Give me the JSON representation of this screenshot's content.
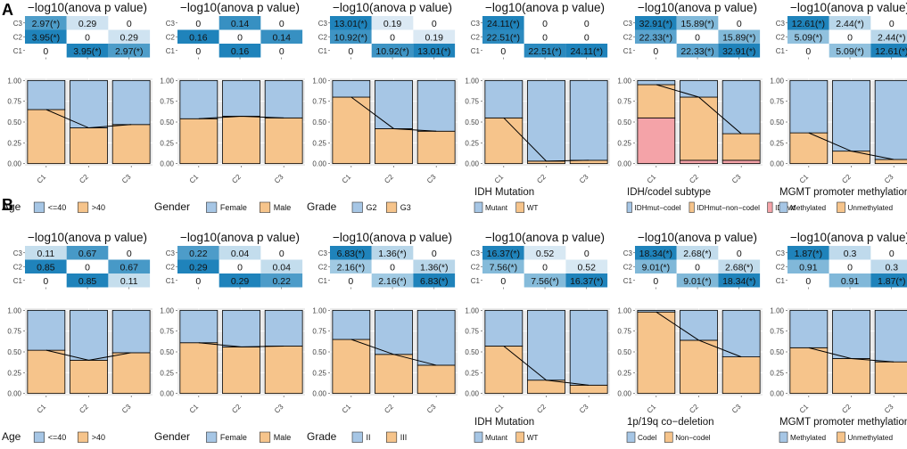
{
  "figure": {
    "panel_labels": [
      "A",
      "B"
    ],
    "heatmap_title": "−log10(anova p value)",
    "clusters": [
      "C1",
      "C2",
      "C3"
    ],
    "bar_y_ticks": [
      "0.00",
      "0.25",
      "0.50",
      "0.75",
      "1.00"
    ]
  },
  "colors": {
    "bar_blue": "#a6c6e5",
    "bar_orange": "#f6c48b",
    "bar_red": "#f4a3a8",
    "heat_low": "#eef4fa",
    "heat_high": "#1f83bb",
    "panel_bg": "#ebebeb",
    "grid": "#ffffff",
    "line": "#000000"
  },
  "chart_data": [
    {
      "id": "A1",
      "row": 0,
      "type": "heatmap+stacked-bar",
      "title": "−log10(anova p value)",
      "heatmap": {
        "rows": [
          "C1",
          "C2",
          "C3"
        ],
        "cols": [
          "C1",
          "C2",
          "C3"
        ],
        "cells": [
          [
            "0",
            "3.95(*)",
            "2.97(*)"
          ],
          [
            "3.95(*)",
            "0",
            "0.29"
          ],
          [
            "2.97(*)",
            "0.29",
            "0"
          ]
        ],
        "values": [
          [
            0,
            3.95,
            2.97
          ],
          [
            3.95,
            0,
            0.29
          ],
          [
            2.97,
            0.29,
            0
          ]
        ]
      },
      "stack": {
        "series": [
          {
            "name": ">40",
            "color": "orange",
            "values": [
              0.65,
              0.43,
              0.47
            ]
          },
          {
            "name": "<=40",
            "color": "blue",
            "values": [
              0.35,
              0.57,
              0.53
            ]
          }
        ],
        "line": [
          0.65,
          0.43,
          0.47
        ]
      },
      "legend": {
        "title": "Age",
        "entries": [
          {
            "label": "<=40",
            "color": "blue"
          },
          {
            "label": ">40",
            "color": "orange"
          }
        ]
      }
    },
    {
      "id": "A2",
      "row": 0,
      "type": "heatmap+stacked-bar",
      "title": "−log10(anova p value)",
      "heatmap": {
        "rows": [
          "C1",
          "C2",
          "C3"
        ],
        "cols": [
          "C1",
          "C2",
          "C3"
        ],
        "cells": [
          [
            "0",
            "0.16",
            "0"
          ],
          [
            "0.16",
            "0",
            "0.14"
          ],
          [
            "0",
            "0.14",
            "0"
          ]
        ],
        "values": [
          [
            0,
            0.16,
            0
          ],
          [
            0.16,
            0,
            0.14
          ],
          [
            0,
            0.14,
            0
          ]
        ]
      },
      "stack": {
        "series": [
          {
            "name": "Male",
            "color": "orange",
            "values": [
              0.54,
              0.57,
              0.55
            ]
          },
          {
            "name": "Female",
            "color": "blue",
            "values": [
              0.46,
              0.43,
              0.45
            ]
          }
        ],
        "line": [
          0.54,
          0.57,
          0.55
        ]
      },
      "legend": {
        "title": "Gender",
        "entries": [
          {
            "label": "Female",
            "color": "blue"
          },
          {
            "label": "Male",
            "color": "orange"
          }
        ]
      }
    },
    {
      "id": "A3",
      "row": 0,
      "type": "heatmap+stacked-bar",
      "title": "−log10(anova p value)",
      "heatmap": {
        "rows": [
          "C1",
          "C2",
          "C3"
        ],
        "cols": [
          "C1",
          "C2",
          "C3"
        ],
        "cells": [
          [
            "0",
            "10.92(*)",
            "13.01(*)"
          ],
          [
            "10.92(*)",
            "0",
            "0.19"
          ],
          [
            "13.01(*)",
            "0.19",
            "0"
          ]
        ],
        "values": [
          [
            0,
            10.92,
            13.01
          ],
          [
            10.92,
            0,
            0.19
          ],
          [
            13.01,
            0.19,
            0
          ]
        ]
      },
      "stack": {
        "series": [
          {
            "name": "G3",
            "color": "orange",
            "values": [
              0.8,
              0.42,
              0.39
            ]
          },
          {
            "name": "G2",
            "color": "blue",
            "values": [
              0.2,
              0.58,
              0.61
            ]
          }
        ],
        "line": [
          0.8,
          0.42,
          0.39
        ]
      },
      "legend": {
        "title": "Grade",
        "entries": [
          {
            "label": "G2",
            "color": "blue"
          },
          {
            "label": "G3",
            "color": "orange"
          }
        ]
      }
    },
    {
      "id": "A4",
      "row": 0,
      "type": "heatmap+stacked-bar",
      "title": "−log10(anova p value)",
      "heatmap": {
        "rows": [
          "C1",
          "C2",
          "C3"
        ],
        "cols": [
          "C1",
          "C2",
          "C3"
        ],
        "cells": [
          [
            "0",
            "22.51(*)",
            "24.11(*)"
          ],
          [
            "22.51(*)",
            "0",
            "0"
          ],
          [
            "24.11(*)",
            "0",
            "0"
          ]
        ],
        "values": [
          [
            0,
            22.51,
            24.11
          ],
          [
            22.51,
            0,
            0
          ],
          [
            24.11,
            0,
            0
          ]
        ]
      },
      "stack": {
        "series": [
          {
            "name": "WT",
            "color": "orange",
            "values": [
              0.55,
              0.03,
              0.04
            ]
          },
          {
            "name": "Mutant",
            "color": "blue",
            "values": [
              0.45,
              0.97,
              0.96
            ]
          }
        ],
        "line": [
          0.55,
          0.03,
          0.04
        ]
      },
      "legend": {
        "title": "IDH Mutation",
        "entries": [
          {
            "label": "Mutant",
            "color": "blue"
          },
          {
            "label": "WT",
            "color": "orange"
          }
        ]
      }
    },
    {
      "id": "A5",
      "row": 0,
      "type": "heatmap+stacked-bar",
      "title": "−log10(anova p value)",
      "heatmap": {
        "rows": [
          "C1",
          "C2",
          "C3"
        ],
        "cols": [
          "C1",
          "C2",
          "C3"
        ],
        "cells": [
          [
            "0",
            "22.33(*)",
            "32.91(*)"
          ],
          [
            "22.33(*)",
            "0",
            "15.89(*)"
          ],
          [
            "32.91(*)",
            "15.89(*)",
            "0"
          ]
        ],
        "values": [
          [
            0,
            22.33,
            32.91
          ],
          [
            22.33,
            0,
            15.89
          ],
          [
            32.91,
            15.89,
            0
          ]
        ]
      },
      "stack": {
        "series": [
          {
            "name": "IDHwt",
            "color": "red",
            "values": [
              0.55,
              0.04,
              0.04
            ]
          },
          {
            "name": "IDHmut−non−codel",
            "color": "orange",
            "values": [
              0.4,
              0.76,
              0.32
            ]
          },
          {
            "name": "IDHmut−codel",
            "color": "blue",
            "values": [
              0.05,
              0.2,
              0.64
            ]
          }
        ],
        "line": [
          0.95,
          0.8,
          0.36
        ]
      },
      "legend": {
        "title": "IDH/codel subtype",
        "entries": [
          {
            "label": "IDHmut−codel",
            "color": "blue"
          },
          {
            "label": "IDHmut−non−codel",
            "color": "orange"
          },
          {
            "label": "IDHwt",
            "color": "red"
          }
        ]
      }
    },
    {
      "id": "A6",
      "row": 0,
      "type": "heatmap+stacked-bar",
      "title": "−log10(anova p value)",
      "heatmap": {
        "rows": [
          "C1",
          "C2",
          "C3"
        ],
        "cols": [
          "C1",
          "C2",
          "C3"
        ],
        "cells": [
          [
            "0",
            "5.09(*)",
            "12.61(*)"
          ],
          [
            "5.09(*)",
            "0",
            "2.44(*)"
          ],
          [
            "12.61(*)",
            "2.44(*)",
            "0"
          ]
        ],
        "values": [
          [
            0,
            5.09,
            12.61
          ],
          [
            5.09,
            0,
            2.44
          ],
          [
            12.61,
            2.44,
            0
          ]
        ]
      },
      "stack": {
        "series": [
          {
            "name": "Unmethylated",
            "color": "orange",
            "values": [
              0.37,
              0.15,
              0.05
            ]
          },
          {
            "name": "Methylated",
            "color": "blue",
            "values": [
              0.63,
              0.85,
              0.95
            ]
          }
        ],
        "line": [
          0.37,
          0.15,
          0.05
        ]
      },
      "legend": {
        "title": "MGMT promoter methylation",
        "entries": [
          {
            "label": "Methylated",
            "color": "blue"
          },
          {
            "label": "Unmethylated",
            "color": "orange"
          }
        ]
      }
    },
    {
      "id": "B1",
      "row": 1,
      "type": "heatmap+stacked-bar",
      "title": "−log10(anova p value)",
      "heatmap": {
        "rows": [
          "C1",
          "C2",
          "C3"
        ],
        "cols": [
          "C1",
          "C2",
          "C3"
        ],
        "cells": [
          [
            "0",
            "0.85",
            "0.11"
          ],
          [
            "0.85",
            "0",
            "0.67"
          ],
          [
            "0.11",
            "0.67",
            "0"
          ]
        ],
        "values": [
          [
            0,
            0.85,
            0.11
          ],
          [
            0.85,
            0,
            0.67
          ],
          [
            0.11,
            0.67,
            0
          ]
        ]
      },
      "stack": {
        "series": [
          {
            "name": ">40",
            "color": "orange",
            "values": [
              0.52,
              0.4,
              0.49
            ]
          },
          {
            "name": "<=40",
            "color": "blue",
            "values": [
              0.48,
              0.6,
              0.51
            ]
          }
        ],
        "line": [
          0.52,
          0.4,
          0.49
        ]
      },
      "legend": {
        "title": "Age",
        "entries": [
          {
            "label": "<=40",
            "color": "blue"
          },
          {
            "label": ">40",
            "color": "orange"
          }
        ]
      }
    },
    {
      "id": "B2",
      "row": 1,
      "type": "heatmap+stacked-bar",
      "title": "−log10(anova p value)",
      "heatmap": {
        "rows": [
          "C1",
          "C2",
          "C3"
        ],
        "cols": [
          "C1",
          "C2",
          "C3"
        ],
        "cells": [
          [
            "0",
            "0.29",
            "0.22"
          ],
          [
            "0.29",
            "0",
            "0.04"
          ],
          [
            "0.22",
            "0.04",
            "0"
          ]
        ],
        "values": [
          [
            0,
            0.29,
            0.22
          ],
          [
            0.29,
            0,
            0.04
          ],
          [
            0.22,
            0.04,
            0
          ]
        ]
      },
      "stack": {
        "series": [
          {
            "name": "Male",
            "color": "orange",
            "values": [
              0.61,
              0.56,
              0.57
            ]
          },
          {
            "name": "Female",
            "color": "blue",
            "values": [
              0.39,
              0.44,
              0.43
            ]
          }
        ],
        "line": [
          0.61,
          0.56,
          0.57
        ]
      },
      "legend": {
        "title": "Gender",
        "entries": [
          {
            "label": "Female",
            "color": "blue"
          },
          {
            "label": "Male",
            "color": "orange"
          }
        ]
      }
    },
    {
      "id": "B3",
      "row": 1,
      "type": "heatmap+stacked-bar",
      "title": "−log10(anova p value)",
      "heatmap": {
        "rows": [
          "C1",
          "C2",
          "C3"
        ],
        "cols": [
          "C1",
          "C2",
          "C3"
        ],
        "cells": [
          [
            "0",
            "2.16(*)",
            "6.83(*)"
          ],
          [
            "2.16(*)",
            "0",
            "1.36(*)"
          ],
          [
            "6.83(*)",
            "1.36(*)",
            "0"
          ]
        ],
        "values": [
          [
            0,
            2.16,
            6.83
          ],
          [
            2.16,
            0,
            1.36
          ],
          [
            6.83,
            1.36,
            0
          ]
        ]
      },
      "stack": {
        "series": [
          {
            "name": "III",
            "color": "orange",
            "values": [
              0.65,
              0.47,
              0.34
            ]
          },
          {
            "name": "II",
            "color": "blue",
            "values": [
              0.35,
              0.53,
              0.66
            ]
          }
        ],
        "line": [
          0.65,
          0.47,
          0.34
        ]
      },
      "legend": {
        "title": "Grade",
        "entries": [
          {
            "label": "II",
            "color": "blue"
          },
          {
            "label": "III",
            "color": "orange"
          }
        ]
      }
    },
    {
      "id": "B4",
      "row": 1,
      "type": "heatmap+stacked-bar",
      "title": "−log10(anova p value)",
      "heatmap": {
        "rows": [
          "C1",
          "C2",
          "C3"
        ],
        "cols": [
          "C1",
          "C2",
          "C3"
        ],
        "cells": [
          [
            "0",
            "7.56(*)",
            "16.37(*)"
          ],
          [
            "7.56(*)",
            "0",
            "0.52"
          ],
          [
            "16.37(*)",
            "0.52",
            "0"
          ]
        ],
        "values": [
          [
            0,
            7.56,
            16.37
          ],
          [
            7.56,
            0,
            0.52
          ],
          [
            16.37,
            0.52,
            0
          ]
        ]
      },
      "stack": {
        "series": [
          {
            "name": "WT",
            "color": "orange",
            "values": [
              0.57,
              0.16,
              0.1
            ]
          },
          {
            "name": "Mutant",
            "color": "blue",
            "values": [
              0.43,
              0.84,
              0.9
            ]
          }
        ],
        "line": [
          0.57,
          0.16,
          0.1
        ]
      },
      "legend": {
        "title": "IDH Mutation",
        "entries": [
          {
            "label": "Mutant",
            "color": "blue"
          },
          {
            "label": "WT",
            "color": "orange"
          }
        ]
      }
    },
    {
      "id": "B5",
      "row": 1,
      "type": "heatmap+stacked-bar",
      "title": "−log10(anova p value)",
      "heatmap": {
        "rows": [
          "C1",
          "C2",
          "C3"
        ],
        "cols": [
          "C1",
          "C2",
          "C3"
        ],
        "cells": [
          [
            "0",
            "9.01(*)",
            "18.34(*)"
          ],
          [
            "9.01(*)",
            "0",
            "2.68(*)"
          ],
          [
            "18.34(*)",
            "2.68(*)",
            "0"
          ]
        ],
        "values": [
          [
            0,
            9.01,
            18.34
          ],
          [
            9.01,
            0,
            2.68
          ],
          [
            18.34,
            2.68,
            0
          ]
        ]
      },
      "stack": {
        "series": [
          {
            "name": "Non−codel",
            "color": "orange",
            "values": [
              0.98,
              0.64,
              0.44
            ]
          },
          {
            "name": "Codel",
            "color": "blue",
            "values": [
              0.02,
              0.36,
              0.56
            ]
          }
        ],
        "line": [
          0.98,
          0.64,
          0.44
        ]
      },
      "legend": {
        "title": "1p/19q co−deletion",
        "entries": [
          {
            "label": "Codel",
            "color": "blue"
          },
          {
            "label": "Non−codel",
            "color": "orange"
          }
        ]
      }
    },
    {
      "id": "B6",
      "row": 1,
      "type": "heatmap+stacked-bar",
      "title": "−log10(anova p value)",
      "heatmap": {
        "rows": [
          "C1",
          "C2",
          "C3"
        ],
        "cols": [
          "C1",
          "C2",
          "C3"
        ],
        "cells": [
          [
            "0",
            "0.91",
            "1.87(*)"
          ],
          [
            "0.91",
            "0",
            "0.3"
          ],
          [
            "1.87(*)",
            "0.3",
            "0"
          ]
        ],
        "values": [
          [
            0,
            0.91,
            1.87
          ],
          [
            0.91,
            0,
            0.3
          ],
          [
            1.87,
            0.3,
            0
          ]
        ]
      },
      "stack": {
        "series": [
          {
            "name": "Unmethylated",
            "color": "orange",
            "values": [
              0.55,
              0.42,
              0.38
            ]
          },
          {
            "name": "Methylated",
            "color": "blue",
            "values": [
              0.45,
              0.58,
              0.62
            ]
          }
        ],
        "line": [
          0.55,
          0.42,
          0.38
        ]
      },
      "legend": {
        "title": "MGMT promoter methylation",
        "entries": [
          {
            "label": "Methylated",
            "color": "blue"
          },
          {
            "label": "Unmethylated",
            "color": "orange"
          }
        ]
      }
    }
  ]
}
